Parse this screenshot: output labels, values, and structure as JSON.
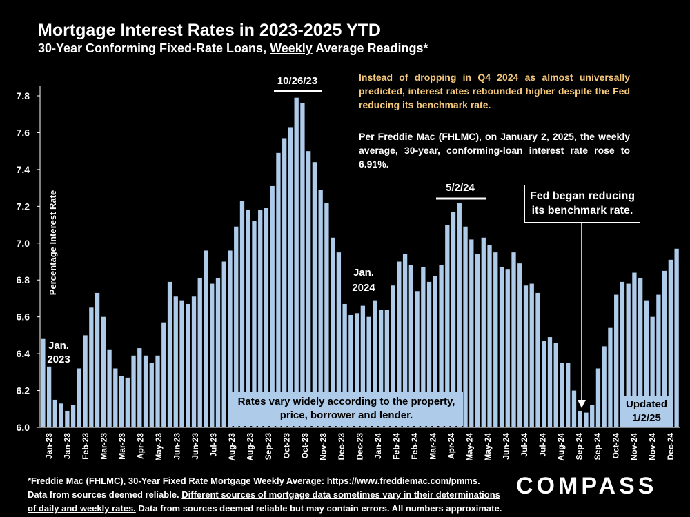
{
  "title": "Mortgage Interest Rates in 2023-2025 YTD",
  "subtitle_pre": "30-Year Conforming Fixed-Rate Loans, ",
  "subtitle_weekly": "Weekly",
  "subtitle_post": " Average Readings*",
  "note_1": "Instead of dropping in Q4 2024 as almost universally predicted, interest rates rebounded higher despite the Fed reducing its benchmark rate.",
  "note_2": "Per Freddie Mac (FHLMC), on January 2, 2025, the weekly average, 30-year, conforming-loan interest rate rose to 6.91%.",
  "peak_1_label": "10/26/23",
  "peak_2_label": "5/2/24",
  "jan_2023_label_1": "Jan.",
  "jan_2023_label_2": "2023",
  "jan_2024_label_1": "Jan.",
  "jan_2024_label_2": "2024",
  "fed_box_1": "Fed began reducing",
  "fed_box_2": "its benchmark rate.",
  "rates_box_1": "Rates vary widely according to the property,",
  "rates_box_2": "price, borrower and lender.",
  "updated_1": "Updated",
  "updated_2": "1/2/25",
  "footer_1": "*Freddie Mac (FHLMC), 30-Year Fixed Rate Mortgage Weekly Average: https://www.freddiemac.com/pmms.",
  "footer_2a": "Data from sources deemed reliable. ",
  "footer_2b": "Different sources of mortgage data sometimes vary in their determinations",
  "footer_3a": "of daily and weekly rates.",
  "footer_3b": " Data from sources deemed reliable but may contain errors. All numbers approximate.",
  "logo": "COMPASS",
  "colors": {
    "bar": "#aecbe9",
    "note_highlight": "#F5C77A",
    "background": "#000000"
  },
  "chart_data": {
    "type": "bar",
    "title": "Mortgage Interest Rates in 2023-2025 YTD",
    "ylabel": "Percentage Interest Rate",
    "ylim": [
      6.0,
      7.8
    ],
    "yticks": [
      "6.0",
      "6.2",
      "6.4",
      "6.6",
      "6.8",
      "7.0",
      "7.2",
      "7.4",
      "7.6",
      "7.8"
    ],
    "xtick_labels": [
      "Jan-23",
      "Jan-23",
      "Feb-23",
      "Mar-23",
      "Mar-23",
      "Apr-23",
      "May-23",
      "Jun-23",
      "Jun-23",
      "Jul-23",
      "Aug-23",
      "Aug-23",
      "Sep-23",
      "Oct-23",
      "Oct-23",
      "Nov-23",
      "Dec-23",
      "Dec-23",
      "Jan-24",
      "Feb-24",
      "Feb-24",
      "Mar-24",
      "Apr-24",
      "May-24",
      "May-24",
      "Jun-24",
      "Jul-24",
      "Jul-24",
      "Aug-24",
      "Sep-24",
      "Sep-24",
      "Oct-24",
      "Nov-24",
      "Nov-24",
      "Dec-24"
    ],
    "values": [
      6.48,
      6.33,
      6.15,
      6.13,
      6.09,
      6.12,
      6.32,
      6.5,
      6.65,
      6.73,
      6.6,
      6.42,
      6.32,
      6.28,
      6.27,
      6.39,
      6.43,
      6.39,
      6.35,
      6.39,
      6.57,
      6.79,
      6.71,
      6.69,
      6.67,
      6.71,
      6.81,
      6.96,
      6.78,
      6.81,
      6.9,
      6.96,
      7.09,
      7.23,
      7.18,
      7.12,
      7.18,
      7.19,
      7.31,
      7.49,
      7.57,
      7.63,
      7.79,
      7.76,
      7.5,
      7.44,
      7.29,
      7.22,
      7.03,
      6.95,
      6.67,
      6.61,
      6.62,
      6.66,
      6.6,
      6.69,
      6.64,
      6.64,
      6.77,
      6.9,
      6.94,
      6.88,
      6.74,
      6.87,
      6.79,
      6.82,
      6.88,
      7.1,
      7.17,
      7.22,
      7.09,
      7.02,
      6.94,
      7.03,
      6.99,
      6.95,
      6.87,
      6.86,
      6.95,
      6.89,
      6.77,
      6.78,
      6.73,
      6.47,
      6.49,
      6.46,
      6.35,
      6.35,
      6.2,
      6.09,
      6.08,
      6.12,
      6.32,
      6.44,
      6.54,
      6.72,
      6.79,
      6.78,
      6.84,
      6.81,
      6.69,
      6.6,
      6.72,
      6.85,
      6.91,
      6.97
    ],
    "annotations": [
      "10/26/23",
      "5/2/24",
      "Jan. 2023",
      "Jan. 2024"
    ]
  }
}
